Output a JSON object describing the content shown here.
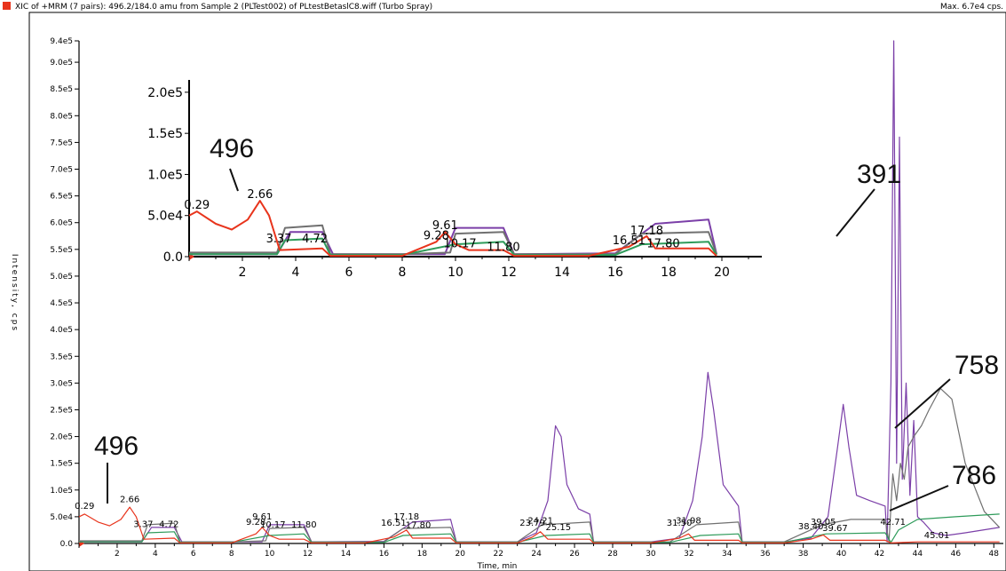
{
  "header": {
    "title": "XIC of +MRM (7 pairs): 496.2/184.0 amu from Sample 2 (PLTest002) of PLtestBetaslC8.wiff (Turbo Spray)",
    "max_label": "Max. 6.7e4 cps.",
    "marker_color": "#e8341c"
  },
  "chart_data": {
    "type": "line",
    "xlabel": "Time, min",
    "ylabel": "Intensity, cps",
    "xlim": [
      0,
      48.5
    ],
    "ylim": [
      0,
      940000
    ],
    "x_ticks": [
      "2",
      "4",
      "6",
      "8",
      "10",
      "12",
      "14",
      "16",
      "18",
      "20",
      "22",
      "24",
      "26",
      "28",
      "30",
      "32",
      "34",
      "36",
      "38",
      "40",
      "42",
      "44",
      "46",
      "48"
    ],
    "y_ticks": [
      "0.0",
      "5.0e4",
      "1.0e5",
      "1.5e5",
      "2.0e5",
      "2.5e5",
      "3.0e5",
      "3.5e5",
      "4.0e5",
      "4.5e5",
      "5.0e5",
      "5.5e5",
      "6.0e5",
      "6.5e5",
      "7.0e5",
      "7.5e5",
      "8.0e5",
      "8.5e5",
      "9.0e5",
      "9.4e5"
    ],
    "peak_labels": [
      {
        "x": 0.29,
        "y": 60000,
        "text": "0.29"
      },
      {
        "x": 2.66,
        "y": 72000,
        "text": "2.66"
      },
      {
        "x": 3.37,
        "y": 26000,
        "text": "3.37"
      },
      {
        "x": 4.72,
        "y": 26000,
        "text": "4.72"
      },
      {
        "x": 9.28,
        "y": 30000,
        "text": "9.28"
      },
      {
        "x": 9.61,
        "y": 40000,
        "text": "9.61"
      },
      {
        "x": 10.17,
        "y": 25000,
        "text": "10.17"
      },
      {
        "x": 11.8,
        "y": 25000,
        "text": "11.80"
      },
      {
        "x": 16.51,
        "y": 28000,
        "text": "16.51"
      },
      {
        "x": 17.18,
        "y": 40000,
        "text": "17.18"
      },
      {
        "x": 17.8,
        "y": 24000,
        "text": "17.80"
      },
      {
        "x": 23.79,
        "y": 28000,
        "text": "23.79"
      },
      {
        "x": 24.21,
        "y": 32000,
        "text": "24.21"
      },
      {
        "x": 25.15,
        "y": 20000,
        "text": "25.15"
      },
      {
        "x": 31.5,
        "y": 28000,
        "text": "31.50"
      },
      {
        "x": 31.98,
        "y": 32000,
        "text": "31.98"
      },
      {
        "x": 38.4,
        "y": 22000,
        "text": "38.40"
      },
      {
        "x": 39.05,
        "y": 30000,
        "text": "39.05"
      },
      {
        "x": 39.67,
        "y": 18000,
        "text": "39.67"
      },
      {
        "x": 42.71,
        "y": 30000,
        "text": "42.71"
      },
      {
        "x": 45.01,
        "y": 5000,
        "text": "45.01"
      }
    ],
    "series": [
      {
        "color": "#7b3fa8",
        "x": [
          0,
          2,
          3.3,
          3.8,
          5.0,
          5.4,
          8,
          9.6,
          10.0,
          11.8,
          12.2,
          16,
          17.5,
          19.5,
          19.8,
          23,
          24,
          24.6,
          25.0,
          25.3,
          25.6,
          26.2,
          26.8,
          27.0,
          30,
          31.5,
          32.2,
          32.7,
          33.0,
          33.3,
          33.8,
          34.6,
          34.8,
          37,
          38.4,
          39.3,
          39.8,
          40.1,
          40.4,
          40.8,
          41.5,
          42.3,
          42.4,
          42.6,
          42.75,
          42.9,
          43.05,
          43.2,
          43.4,
          43.6,
          43.8,
          44.0,
          44.3,
          44.8,
          45.5,
          46.5,
          48.3
        ],
        "y": [
          3000,
          3000,
          3000,
          30000,
          30000,
          3000,
          3000,
          3000,
          35000,
          35000,
          3000,
          4000,
          40000,
          45000,
          3000,
          3000,
          20000,
          80000,
          220000,
          200000,
          110000,
          65000,
          55000,
          3000,
          3000,
          10000,
          80000,
          200000,
          320000,
          250000,
          110000,
          70000,
          3000,
          3000,
          10000,
          50000,
          180000,
          260000,
          180000,
          90000,
          80000,
          70000,
          3000,
          300000,
          940000,
          150000,
          760000,
          120000,
          300000,
          90000,
          230000,
          50000,
          40000,
          20000,
          15000,
          20000,
          30000
        ]
      },
      {
        "color": "#707070",
        "x": [
          0,
          3.3,
          3.6,
          5.0,
          5.3,
          8,
          9.8,
          10.0,
          11.8,
          12.2,
          16,
          17.0,
          19.5,
          19.8,
          23,
          24.3,
          26.8,
          27.0,
          31,
          32.4,
          34.6,
          34.8,
          37,
          39.0,
          40.5,
          42.3,
          42.5,
          42.7,
          42.9,
          43.1,
          43.3,
          43.5,
          43.8,
          44.2,
          44.6,
          45.2,
          45.8,
          46.5,
          47.5,
          48.3
        ],
        "y": [
          5000,
          5000,
          35000,
          38000,
          3000,
          3000,
          5000,
          28000,
          30000,
          3000,
          3000,
          28000,
          30000,
          3000,
          3000,
          35000,
          40000,
          3000,
          3000,
          35000,
          40000,
          3000,
          3000,
          35000,
          45000,
          45000,
          3000,
          130000,
          80000,
          150000,
          120000,
          180000,
          200000,
          220000,
          250000,
          290000,
          270000,
          150000,
          60000,
          30000
        ]
      },
      {
        "color": "#2e9b5a",
        "x": [
          0,
          3.3,
          3.6,
          5.0,
          5.3,
          8,
          10.0,
          11.8,
          12.2,
          16,
          17.0,
          19.5,
          19.8,
          23,
          24.5,
          26.8,
          27.0,
          31,
          32.6,
          34.6,
          34.8,
          37,
          39.2,
          42.3,
          42.6,
          43.0,
          44.0,
          46,
          48.3
        ],
        "y": [
          3000,
          3000,
          20000,
          22000,
          2000,
          2000,
          15000,
          18000,
          2000,
          2000,
          15000,
          18000,
          2000,
          2000,
          15000,
          18000,
          2000,
          2000,
          15000,
          18000,
          2000,
          2000,
          18000,
          20000,
          2000,
          25000,
          45000,
          50000,
          55000
        ]
      },
      {
        "color": "#e8341c",
        "x": [
          0,
          0.29,
          1.0,
          1.6,
          2.2,
          2.66,
          3.0,
          3.4,
          5.0,
          5.3,
          8,
          9.28,
          9.61,
          10.0,
          10.5,
          11.8,
          12.2,
          15,
          16.51,
          17.18,
          17.5,
          19.5,
          19.8,
          23,
          23.79,
          24.21,
          24.6,
          26.8,
          27.0,
          30,
          31.5,
          31.98,
          32.3,
          34.6,
          34.8,
          37,
          38.4,
          39.05,
          39.4,
          42.3,
          42.6,
          44,
          48.3
        ],
        "y": [
          50000,
          55000,
          40000,
          33000,
          45000,
          68000,
          50000,
          8000,
          10000,
          1000,
          1000,
          18000,
          30000,
          15000,
          8000,
          8000,
          1000,
          1000,
          12000,
          25000,
          10000,
          10000,
          1000,
          1000,
          12000,
          22000,
          8000,
          8000,
          1000,
          1000,
          10000,
          18000,
          6000,
          6000,
          1000,
          1000,
          8000,
          16000,
          6000,
          6000,
          1000,
          3000,
          3000
        ]
      }
    ],
    "inset": {
      "xlim": [
        0,
        21.5
      ],
      "ylim": [
        0,
        215000
      ],
      "x_ticks": [
        "2",
        "4",
        "6",
        "8",
        "10",
        "12",
        "14",
        "16",
        "18",
        "20"
      ],
      "y_ticks": [
        "0.0",
        "5.0e4",
        "1.0e5",
        "1.5e5",
        "2.0e5"
      ],
      "peak_labels": [
        {
          "x": 0.29,
          "y": 55000,
          "text": "0.29"
        },
        {
          "x": 2.66,
          "y": 68000,
          "text": "2.66"
        },
        {
          "x": 3.37,
          "y": 14000,
          "text": "3.37"
        },
        {
          "x": 4.72,
          "y": 14000,
          "text": "4.72"
        },
        {
          "x": 9.28,
          "y": 18000,
          "text": "9.28"
        },
        {
          "x": 9.61,
          "y": 30000,
          "text": "9.61"
        },
        {
          "x": 10.17,
          "y": 8000,
          "text": "10.17"
        },
        {
          "x": 11.8,
          "y": 4000,
          "text": "11.80"
        },
        {
          "x": 16.51,
          "y": 12000,
          "text": "16.51"
        },
        {
          "x": 17.18,
          "y": 24000,
          "text": "17.18"
        },
        {
          "x": 17.8,
          "y": 8000,
          "text": "17.80"
        }
      ]
    },
    "annotations": [
      {
        "text": "496",
        "target": "main"
      },
      {
        "text": "496",
        "target": "inset"
      },
      {
        "text": "391",
        "target": "main"
      },
      {
        "text": "758",
        "target": "main"
      },
      {
        "text": "786",
        "target": "main"
      }
    ]
  }
}
